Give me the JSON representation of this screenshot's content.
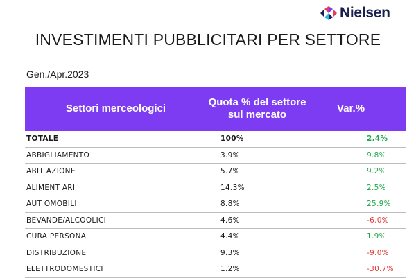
{
  "brand": {
    "name": "Nielsen",
    "logo_colors": [
      "#1b1f4f",
      "#e8385f",
      "#7e3cf2",
      "#2fb6e6"
    ]
  },
  "title": "INVESTIMENTI PUBBLICITARI PER SETTORE",
  "period": "Gen./Apr.2023",
  "colors": {
    "header_bg": "#7e3cf2",
    "positive": "#1fa64a",
    "negative": "#e53935"
  },
  "table": {
    "headers": {
      "sector": "Settori merceologici",
      "quota": "Quota % del settore sul mercato",
      "var": "Var.%"
    },
    "rows": [
      {
        "sector": "TOTALE",
        "quota": "100%",
        "var": "2.4%",
        "trend": "positive"
      },
      {
        "sector": "ABBIGLIAMENTO",
        "quota": "3.9%",
        "var": "9.8%",
        "trend": "positive"
      },
      {
        "sector": "ABIT AZIONE",
        "quota": "5.7%",
        "var": "9.2%",
        "trend": "positive"
      },
      {
        "sector": "ALIMENT ARI",
        "quota": "14.3%",
        "var": "2.5%",
        "trend": "positive"
      },
      {
        "sector": "AUT OMOBILI",
        "quota": "8.8%",
        "var": "25.9%",
        "trend": "positive"
      },
      {
        "sector": "BEVANDE/ALCOOLICI",
        "quota": "4.6%",
        "var": "-6.0%",
        "trend": "negative"
      },
      {
        "sector": "CURA PERSONA",
        "quota": "4.4%",
        "var": "1.9%",
        "trend": "positive"
      },
      {
        "sector": "DISTRIBUZIONE",
        "quota": "9.3%",
        "var": "-9.0%",
        "trend": "negative"
      },
      {
        "sector": "ELETTRODOMESTICI",
        "quota": "1.2%",
        "var": "-30.7%",
        "trend": "negative"
      }
    ]
  }
}
